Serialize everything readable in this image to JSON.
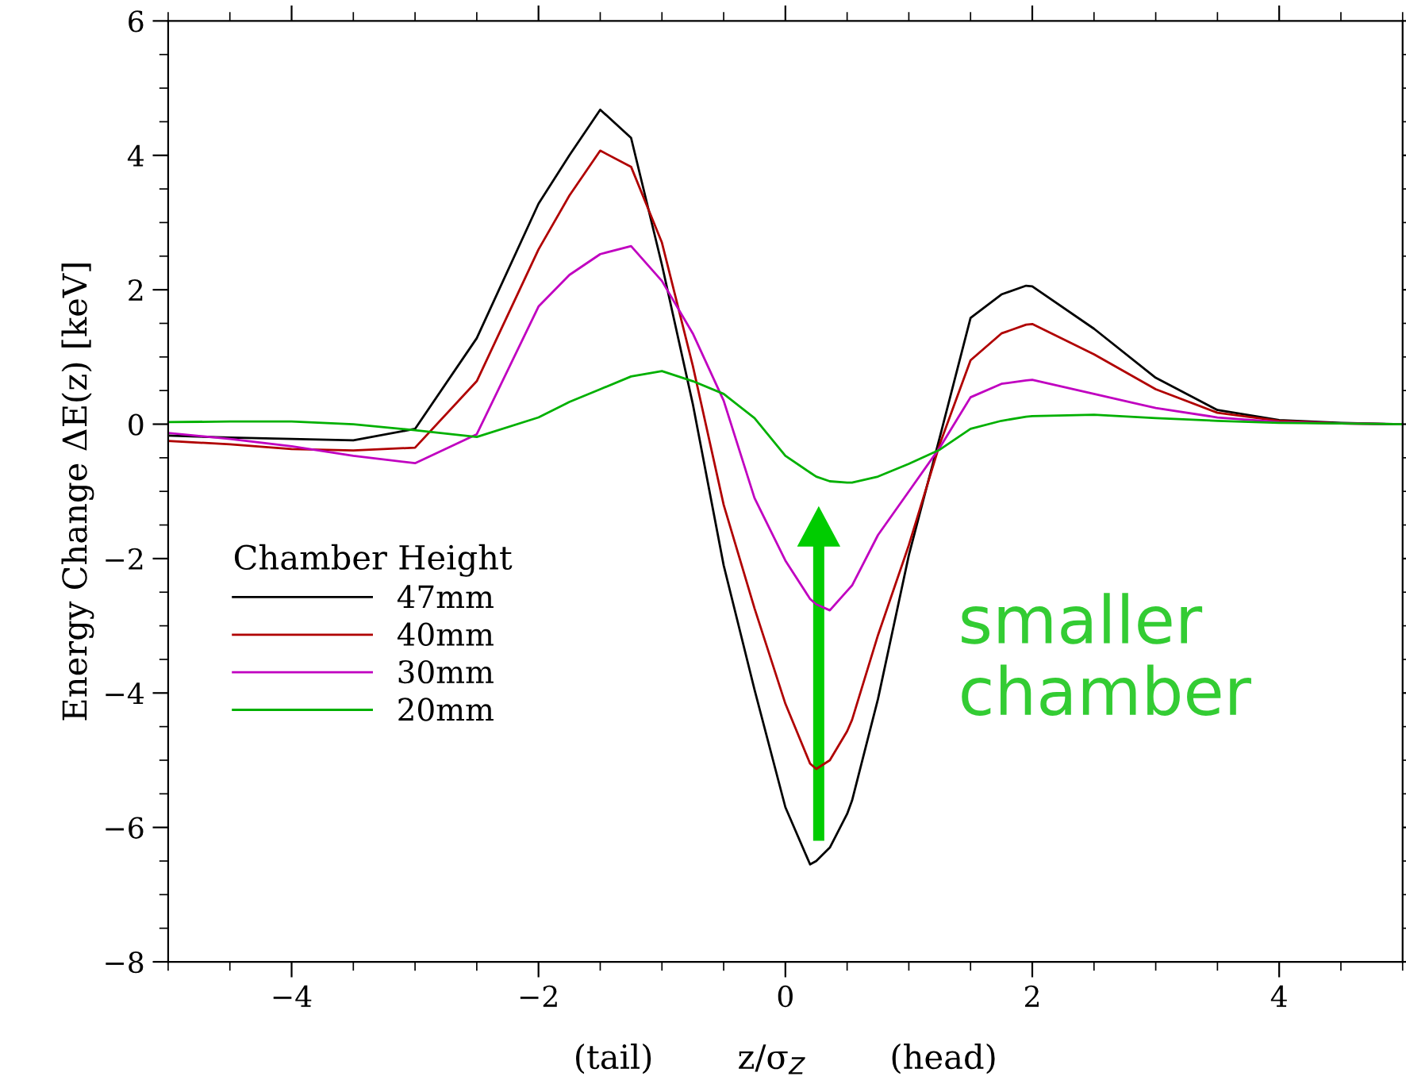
{
  "chart_data": {
    "type": "line",
    "xlabel": "(tail)        z/σ$_{Z}$        (head)",
    "ylabel": "Energy Change ΔE(z) [keV]",
    "legend_title": "Chamber Height",
    "legend": "bottom left",
    "grid": false,
    "marker": "none",
    "line_style": "solid",
    "x": [
      -5,
      -4.5,
      -4,
      -3.5,
      -3,
      -2.5,
      -2,
      -1.75,
      -1.5,
      -1.25,
      -1,
      -0.75,
      -0.5,
      -0.25,
      0,
      0.2,
      0.25,
      0.36,
      0.5,
      0.54,
      0.75,
      1,
      1.25,
      1.5,
      1.75,
      1.95,
      2,
      2.5,
      3,
      3.5,
      4,
      4.5,
      5
    ],
    "series": [
      {
        "name": "47mm",
        "color": "#000000",
        "values": [
          -0.17,
          -0.2,
          -0.22,
          -0.24,
          -0.07,
          1.28,
          3.28,
          4.0,
          4.68,
          4.26,
          2.37,
          0.3,
          -2.1,
          -3.95,
          -5.7,
          -6.55,
          -6.5,
          -6.3,
          -5.8,
          -5.6,
          -4.09,
          -1.95,
          -0.2,
          1.58,
          1.93,
          2.06,
          2.05,
          1.42,
          0.69,
          0.21,
          0.06,
          0.02,
          0
        ]
      },
      {
        "name": "40mm",
        "color": "#b00000",
        "values": [
          -0.25,
          -0.3,
          -0.37,
          -0.39,
          -0.35,
          0.64,
          2.6,
          3.4,
          4.07,
          3.83,
          2.7,
          0.87,
          -1.2,
          -2.74,
          -4.16,
          -5.05,
          -5.13,
          -5.0,
          -4.57,
          -4.4,
          -3.14,
          -1.8,
          -0.3,
          0.95,
          1.35,
          1.48,
          1.49,
          1.04,
          0.52,
          0.17,
          0.05,
          0.01,
          0
        ]
      },
      {
        "name": "30mm",
        "color": "#c000c0",
        "values": [
          -0.13,
          -0.22,
          -0.33,
          -0.47,
          -0.58,
          -0.15,
          1.75,
          2.22,
          2.53,
          2.65,
          2.13,
          1.35,
          0.35,
          -1.1,
          -2.03,
          -2.6,
          -2.68,
          -2.77,
          -2.48,
          -2.4,
          -1.65,
          -1.0,
          -0.35,
          0.4,
          0.6,
          0.65,
          0.66,
          0.45,
          0.24,
          0.1,
          0.03,
          0.01,
          0
        ]
      },
      {
        "name": "20mm",
        "color": "#00b000",
        "values": [
          0.03,
          0.04,
          0.04,
          0.0,
          -0.09,
          -0.19,
          0.1,
          0.33,
          0.52,
          0.71,
          0.79,
          0.64,
          0.45,
          0.09,
          -0.47,
          -0.72,
          -0.78,
          -0.85,
          -0.87,
          -0.87,
          -0.78,
          -0.59,
          -0.38,
          -0.07,
          0.05,
          0.11,
          0.12,
          0.14,
          0.09,
          0.05,
          0.02,
          0.01,
          0
        ]
      }
    ],
    "xlim": [
      -5,
      5
    ],
    "xticks": [
      {
        "value": -4,
        "label": "−4"
      },
      {
        "value": -2,
        "label": "−2"
      },
      0,
      2,
      4
    ],
    "ylim": [
      -8,
      6
    ],
    "yticks": [
      {
        "value": -8,
        "label": "−8"
      },
      {
        "value": -6,
        "label": "−6"
      },
      {
        "value": -4,
        "label": "−4"
      },
      {
        "value": -2,
        "label": "−2"
      },
      0,
      2,
      4,
      6
    ],
    "annotations": [
      "smaller\nchamber"
    ]
  }
}
